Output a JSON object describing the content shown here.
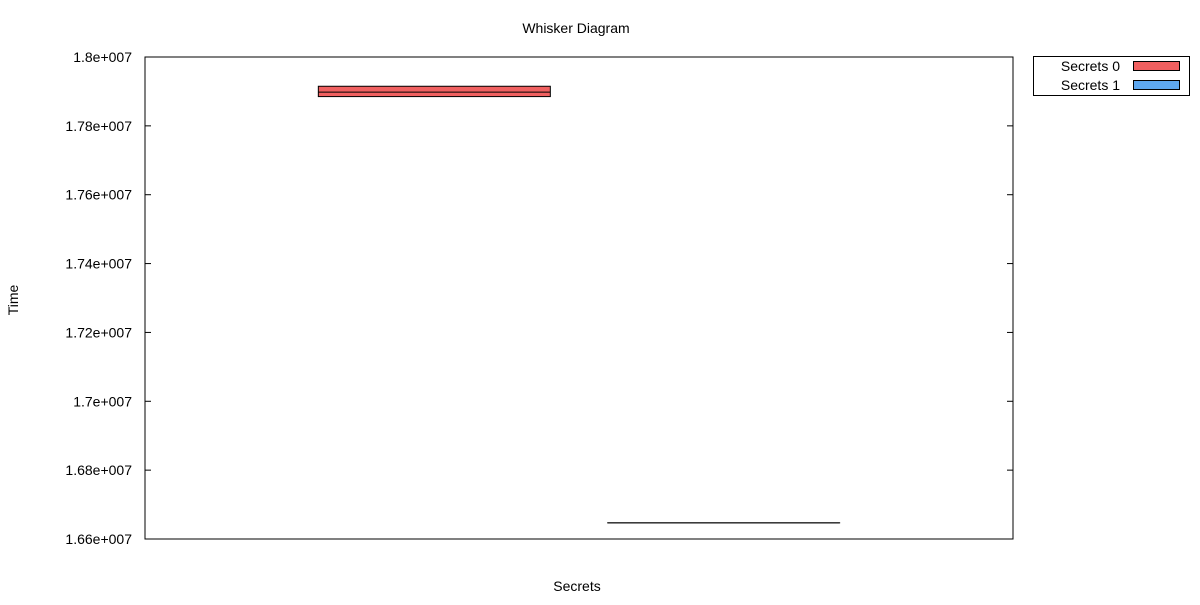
{
  "chart_data": {
    "type": "box",
    "title": "Whisker Diagram",
    "xlabel": "Secrets",
    "ylabel": "Time",
    "ylim": [
      16600000,
      18000000
    ],
    "yticks": [
      16600000,
      16800000,
      17000000,
      17200000,
      17400000,
      17600000,
      17800000,
      18000000
    ],
    "ytick_labels": [
      "1.66e+007",
      "1.68e+007",
      "1.7e+007",
      "1.72e+007",
      "1.74e+007",
      "1.76e+007",
      "1.78e+007",
      "1.8e+007"
    ],
    "grid": false,
    "legend_position": "outside-top-right",
    "series": [
      {
        "name": "Secrets 0",
        "color": "#f06060",
        "min": 17885000,
        "q1": 17885000,
        "median": 17898000,
        "q3": 17915000,
        "max": 17915000
      },
      {
        "name": "Secrets 1",
        "color": "#5ea8f0",
        "min": 16647000,
        "q1": 16647000,
        "median": 16647000,
        "q3": 16647000,
        "max": 16647000
      }
    ]
  }
}
